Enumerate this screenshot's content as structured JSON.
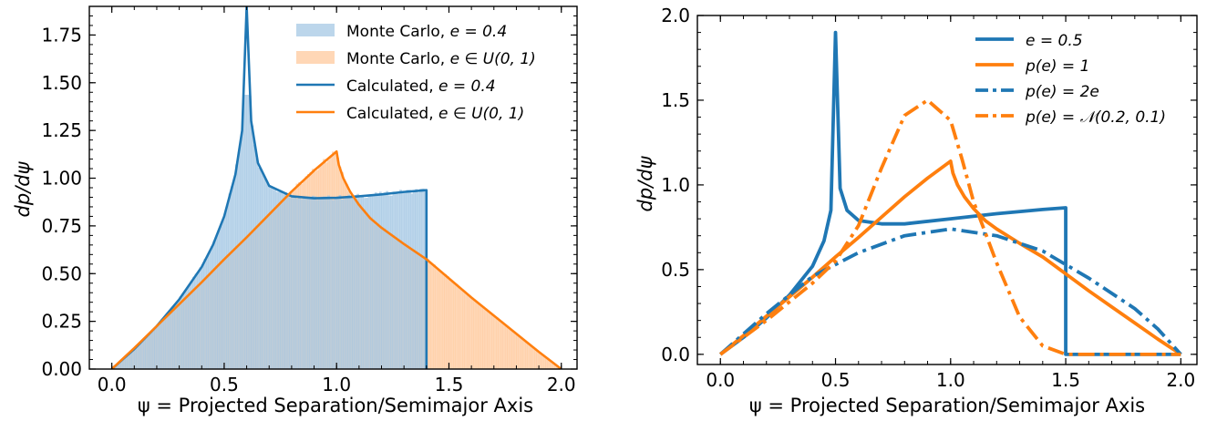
{
  "chart_data": [
    {
      "type": "histogram+line",
      "xlabel": "ψ = Projected Separation/Semimajor Axis",
      "ylabel": "dp/dψ",
      "xlim": [
        -0.1,
        2.07
      ],
      "ylim": [
        0,
        1.9
      ],
      "xticks": [
        "0.0",
        "0.5",
        "1.0",
        "1.5",
        "2.0"
      ],
      "yticks": [
        "0.00",
        "0.25",
        "0.50",
        "0.75",
        "1.00",
        "1.25",
        "1.50",
        "1.75"
      ],
      "legend_position": "top-right",
      "histograms": [
        {
          "name": "Monte Carlo, e = 0.4",
          "distribution": "fixed e = 0.4",
          "range": [
            0,
            1.4
          ],
          "bins": 140,
          "color": "#a6c8e4"
        },
        {
          "name": "Monte Carlo, e ∈ U(0, 1)",
          "distribution": "uniform e",
          "range": [
            0,
            2.0
          ],
          "bins": 200,
          "color": "#ffc99e"
        }
      ],
      "series": [
        {
          "name": "Calculated, e = 0.4",
          "color": "#1f77b4",
          "style": "solid",
          "points": [
            [
              0.0,
              0.0
            ],
            [
              0.1,
              0.105
            ],
            [
              0.2,
              0.225
            ],
            [
              0.3,
              0.365
            ],
            [
              0.4,
              0.535
            ],
            [
              0.45,
              0.65
            ],
            [
              0.5,
              0.8
            ],
            [
              0.55,
              1.02
            ],
            [
              0.58,
              1.25
            ],
            [
              0.6,
              1.9
            ],
            [
              0.62,
              1.3
            ],
            [
              0.65,
              1.08
            ],
            [
              0.7,
              0.96
            ],
            [
              0.8,
              0.905
            ],
            [
              0.9,
              0.895
            ],
            [
              1.0,
              0.897
            ],
            [
              1.1,
              0.905
            ],
            [
              1.2,
              0.915
            ],
            [
              1.3,
              0.928
            ],
            [
              1.4,
              0.937
            ],
            [
              1.4,
              0.0
            ]
          ]
        },
        {
          "name": "Calculated, e ∈ U(0, 1)",
          "color": "#ff7f0e",
          "style": "solid",
          "points": [
            [
              0.0,
              0.0
            ],
            [
              0.1,
              0.11
            ],
            [
              0.2,
              0.225
            ],
            [
              0.3,
              0.34
            ],
            [
              0.4,
              0.455
            ],
            [
              0.5,
              0.575
            ],
            [
              0.6,
              0.69
            ],
            [
              0.7,
              0.81
            ],
            [
              0.8,
              0.93
            ],
            [
              0.9,
              1.04
            ],
            [
              0.97,
              1.11
            ],
            [
              1.0,
              1.14
            ],
            [
              1.01,
              1.07
            ],
            [
              1.03,
              1.0
            ],
            [
              1.06,
              0.93
            ],
            [
              1.1,
              0.86
            ],
            [
              1.15,
              0.79
            ],
            [
              1.2,
              0.74
            ],
            [
              1.3,
              0.655
            ],
            [
              1.4,
              0.575
            ],
            [
              1.5,
              0.475
            ],
            [
              1.6,
              0.375
            ],
            [
              1.7,
              0.28
            ],
            [
              1.8,
              0.185
            ],
            [
              1.9,
              0.09
            ],
            [
              2.0,
              0.0
            ]
          ]
        }
      ]
    },
    {
      "type": "line",
      "xlabel": "ψ = Projected Separation/Semimajor Axis",
      "ylabel": "dp/dψ",
      "xlim": [
        -0.1,
        2.07
      ],
      "ylim": [
        -0.06,
        2.0
      ],
      "xticks": [
        "0.0",
        "0.5",
        "1.0",
        "1.5",
        "2.0"
      ],
      "yticks": [
        "0.0",
        "0.5",
        "1.0",
        "1.5",
        "2.0"
      ],
      "legend_position": "top-right",
      "series": [
        {
          "name": "e = 0.5",
          "color": "#1f77b4",
          "style": "solid",
          "points": [
            [
              0.0,
              0.0
            ],
            [
              0.1,
              0.1
            ],
            [
              0.2,
              0.215
            ],
            [
              0.3,
              0.35
            ],
            [
              0.4,
              0.52
            ],
            [
              0.45,
              0.67
            ],
            [
              0.48,
              0.85
            ],
            [
              0.5,
              1.9
            ],
            [
              0.52,
              0.98
            ],
            [
              0.55,
              0.85
            ],
            [
              0.6,
              0.79
            ],
            [
              0.7,
              0.77
            ],
            [
              0.8,
              0.77
            ],
            [
              1.0,
              0.8
            ],
            [
              1.2,
              0.83
            ],
            [
              1.4,
              0.855
            ],
            [
              1.5,
              0.865
            ],
            [
              1.5,
              0.0
            ],
            [
              2.0,
              0.0
            ]
          ]
        },
        {
          "name": "p(e) = 1",
          "color": "#ff7f0e",
          "style": "solid",
          "points": [
            [
              0.0,
              0.0
            ],
            [
              0.1,
              0.11
            ],
            [
              0.2,
              0.225
            ],
            [
              0.3,
              0.34
            ],
            [
              0.4,
              0.455
            ],
            [
              0.5,
              0.575
            ],
            [
              0.6,
              0.69
            ],
            [
              0.7,
              0.81
            ],
            [
              0.8,
              0.93
            ],
            [
              0.9,
              1.04
            ],
            [
              1.0,
              1.14
            ],
            [
              1.01,
              1.07
            ],
            [
              1.03,
              1.0
            ],
            [
              1.06,
              0.93
            ],
            [
              1.1,
              0.86
            ],
            [
              1.15,
              0.79
            ],
            [
              1.2,
              0.74
            ],
            [
              1.3,
              0.655
            ],
            [
              1.4,
              0.575
            ],
            [
              1.5,
              0.475
            ],
            [
              1.6,
              0.375
            ],
            [
              1.7,
              0.28
            ],
            [
              1.8,
              0.185
            ],
            [
              1.9,
              0.09
            ],
            [
              2.0,
              0.0
            ]
          ]
        },
        {
          "name": "p(e) = 2e",
          "color": "#1f77b4",
          "style": "dashdot",
          "points": [
            [
              0.0,
              0.0
            ],
            [
              0.2,
              0.24
            ],
            [
              0.4,
              0.46
            ],
            [
              0.6,
              0.6
            ],
            [
              0.8,
              0.7
            ],
            [
              1.0,
              0.74
            ],
            [
              1.2,
              0.7
            ],
            [
              1.4,
              0.61
            ],
            [
              1.6,
              0.45
            ],
            [
              1.8,
              0.27
            ],
            [
              1.9,
              0.15
            ],
            [
              2.0,
              0.0
            ]
          ]
        },
        {
          "name": "p(e) = 𝒩(0.2, 0.1)",
          "color": "#ff7f0e",
          "style": "dashdot",
          "points": [
            [
              0.0,
              0.0
            ],
            [
              0.2,
              0.2
            ],
            [
              0.4,
              0.42
            ],
            [
              0.5,
              0.55
            ],
            [
              0.6,
              0.76
            ],
            [
              0.7,
              1.1
            ],
            [
              0.8,
              1.41
            ],
            [
              0.9,
              1.5
            ],
            [
              1.0,
              1.38
            ],
            [
              1.05,
              1.15
            ],
            [
              1.1,
              0.9
            ],
            [
              1.2,
              0.54
            ],
            [
              1.3,
              0.22
            ],
            [
              1.4,
              0.05
            ],
            [
              1.5,
              0.0
            ],
            [
              2.0,
              0.0
            ]
          ]
        }
      ]
    }
  ],
  "legend_left": [
    {
      "kind": "patch",
      "color": "#a6c8e4",
      "prefix": "Monte Carlo, ",
      "math": "e = 0.4"
    },
    {
      "kind": "patch",
      "color": "#ffc99e",
      "prefix": "Monte Carlo, ",
      "math": "e ∈ U(0, 1)"
    },
    {
      "kind": "line",
      "color": "#1f77b4",
      "dash": "",
      "prefix": "Calculated, ",
      "math": "e = 0.4"
    },
    {
      "kind": "line",
      "color": "#ff7f0e",
      "dash": "",
      "prefix": "Calculated, ",
      "math": "e ∈ U(0, 1)"
    }
  ],
  "legend_right": [
    {
      "kind": "line",
      "color": "#1f77b4",
      "dash": "",
      "prefix": "",
      "math": "e = 0.5"
    },
    {
      "kind": "line",
      "color": "#ff7f0e",
      "dash": "",
      "prefix": "",
      "math": "p(e) = 1"
    },
    {
      "kind": "line",
      "color": "#1f77b4",
      "dash": "dashdot",
      "prefix": "",
      "math": "p(e) = 2e"
    },
    {
      "kind": "line",
      "color": "#ff7f0e",
      "dash": "dashdot",
      "prefix": "",
      "math": "p(e) = 𝒩(0.2, 0.1)"
    }
  ]
}
